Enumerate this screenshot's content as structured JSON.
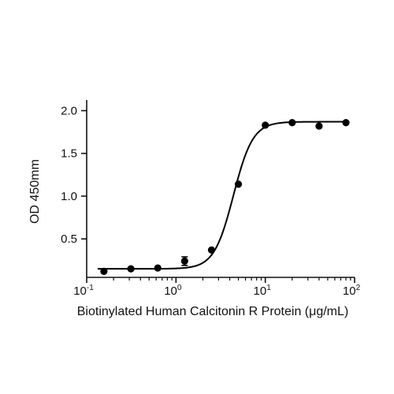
{
  "chart_data": {
    "type": "scatter",
    "title": "",
    "xlabel": "Biotinylated Human Calcitonin R Protein (μg/mL)",
    "ylabel": "OD 450mm",
    "x_scale": "log",
    "xlim": [
      0.1,
      100
    ],
    "ylim": [
      0.05,
      2.05
    ],
    "grid": false,
    "legend": "none",
    "y_ticks": [
      "0.5",
      "1.0",
      "1.5",
      "2.0"
    ],
    "x_ticks": [
      {
        "base": "10",
        "exp": "-1"
      },
      {
        "base": "10",
        "exp": "0"
      },
      {
        "base": "10",
        "exp": "1"
      },
      {
        "base": "10",
        "exp": "2"
      }
    ],
    "series": [
      {
        "x": [
          0.156,
          0.3125,
          0.625,
          1.25,
          2.5,
          5,
          10,
          20,
          40,
          80
        ],
        "y": [
          0.12,
          0.15,
          0.16,
          0.24,
          0.37,
          1.14,
          1.83,
          1.86,
          1.82,
          1.86
        ],
        "error": [
          0,
          0,
          0,
          0.05,
          0,
          0,
          0,
          0,
          0,
          0
        ]
      }
    ],
    "fit": {
      "bottom": 0.15,
      "top": 1.87,
      "ec50": 4.4,
      "hill": 4.0
    },
    "color": "#000000"
  }
}
